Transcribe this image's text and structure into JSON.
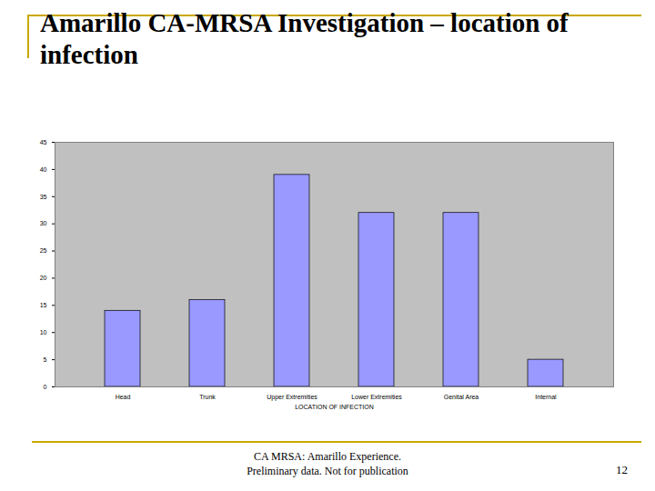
{
  "chart_data": {
    "type": "bar",
    "title": "Amarillo CA-MRSA Investigation – location of infection",
    "x_label": "LOCATION OF INFECTION",
    "categories": [
      "Head",
      "Trunk",
      "Upper Extremities",
      "Lower Extremities",
      "Genital Area",
      "Internal"
    ],
    "values": [
      14,
      16,
      39,
      32,
      32,
      5
    ],
    "color": "#9999ff",
    "ylim": [
      0,
      45
    ],
    "yticks": [
      0,
      5,
      10,
      15,
      20,
      25,
      30,
      35,
      40,
      45
    ],
    "grid": false
  },
  "footer": [
    "CA MRSA: Amarillo Experience.",
    "Preliminary data. Not for publication"
  ],
  "page_number": 12
}
